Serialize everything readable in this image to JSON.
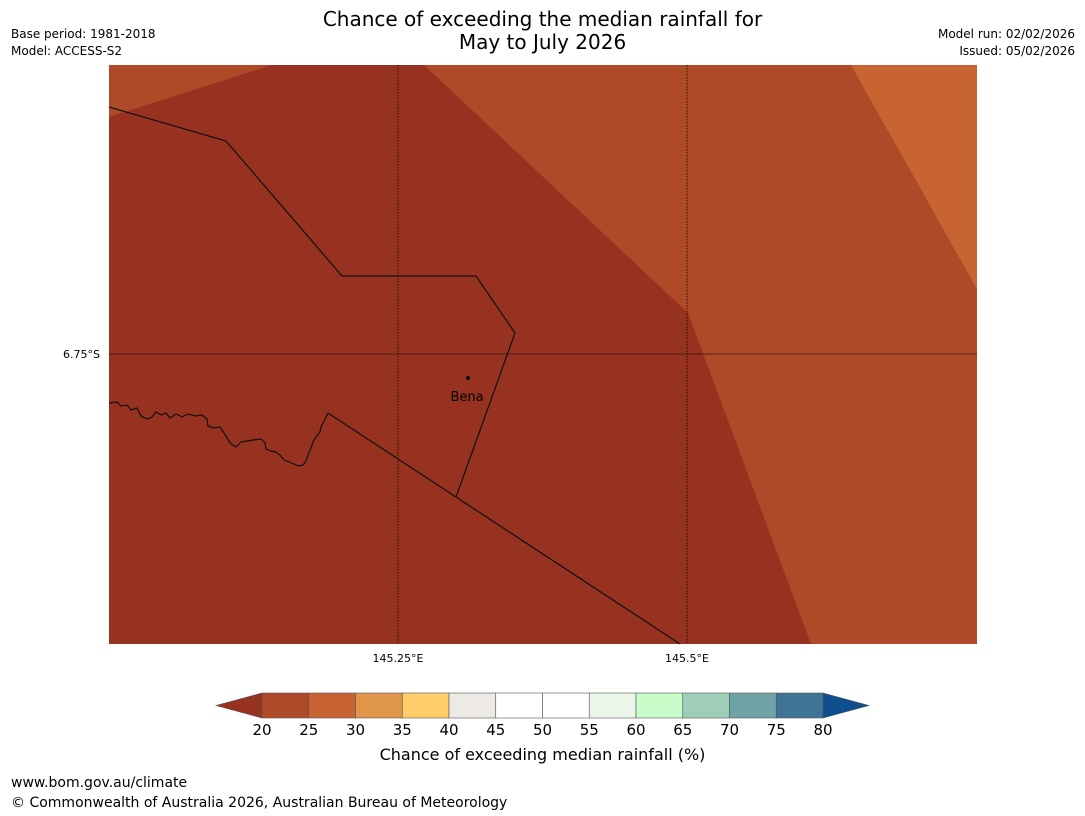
{
  "title_line1": "Chance of exceeding the median rainfall for",
  "title_line2": "May to July 2026",
  "meta_left": {
    "base_period": "Base period: 1981-2018",
    "model": "Model: ACCESS-S2"
  },
  "meta_right": {
    "model_run": "Model run: 02/02/2026",
    "issued": "Issued: 05/02/2026"
  },
  "map": {
    "lat_label": "6.75°S",
    "lon_labels": [
      "145.25°E",
      "145.5°E"
    ],
    "place_name": "Bena",
    "colors": {
      "band_20_25": "#973220",
      "band_25_30": "#AE4A27",
      "band_30_35": "#C86432"
    }
  },
  "colorbar": {
    "label": "Chance of exceeding median rainfall (%)",
    "ticks": [
      "20",
      "25",
      "30",
      "35",
      "40",
      "45",
      "50",
      "55",
      "60",
      "65",
      "70",
      "75",
      "80"
    ],
    "under_color": "#973220",
    "over_color": "#0F4F8E",
    "segment_colors": [
      "#AE4A27",
      "#C86432",
      "#E0964A",
      "#FECD6A",
      "#EDEAE5",
      "#FFFFFF",
      "#FFFFFF",
      "#E9F6E9",
      "#C8FCC8",
      "#9ECEB8",
      "#6FA3A6",
      "#3E7595"
    ]
  },
  "footer": {
    "url": "www.bom.gov.au/climate",
    "copyright": "© Commonwealth of Australia 2026, Australian Bureau of Meteorology"
  }
}
